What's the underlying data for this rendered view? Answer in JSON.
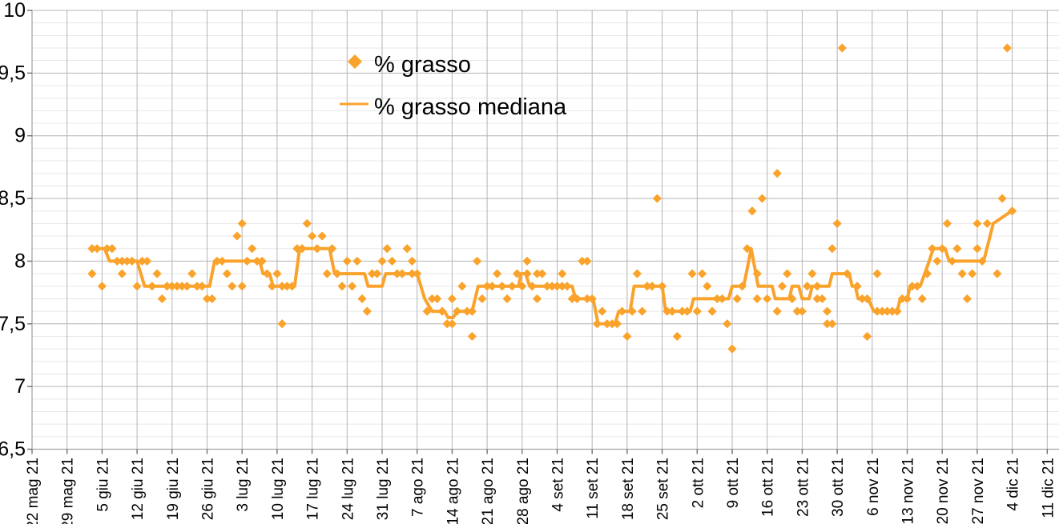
{
  "chart_data": {
    "type": "scatter",
    "title": "",
    "xlabel": "",
    "ylabel": "",
    "legend_position": "top-center-inside",
    "grid": true,
    "colors": {
      "series_orange": "#FAA32C",
      "major_grid": "#b4b4b4",
      "minor_grid": "#e7e7e7",
      "axis": "#a6a6a6",
      "tick": "#707070",
      "label_text": "#000000",
      "background": "#ffffff"
    },
    "y_axis": {
      "min": 6.5,
      "max": 10,
      "major_step": 0.5,
      "minor_step": 0.1,
      "tick_labels": [
        "10",
        "9,5",
        "9",
        "8,5",
        "8",
        "7,5",
        "7",
        "6,5"
      ]
    },
    "x_axis": {
      "unit": "days since first tick (weekly ticks)",
      "tick_interval_days": 7,
      "tick_labels": [
        "22 mag 21",
        "29 mag 21",
        "5 giu 21",
        "12 giu 21",
        "19 giu 21",
        "26 giu 21",
        "3 lug 21",
        "10 lug 21",
        "17 lug 21",
        "24 lug 21",
        "31 lug 21",
        "7 ago 21",
        "14 ago 21",
        "21 ago 21",
        "28 ago 21",
        "4 set 21",
        "11 set 21",
        "18 set 21",
        "25 set 21",
        "2 ott 21",
        "9 ott 21",
        "16 ott 21",
        "23 ott 21",
        "30 ott 21",
        "6 nov 21",
        "13 nov 21",
        "20 nov 21",
        "27 nov 21",
        "4 dic 21",
        "11 dic 21"
      ]
    },
    "series": [
      {
        "name": "% grasso",
        "style": "scatter",
        "marker": "diamond",
        "color": "#FAA32C",
        "points": [
          [
            12,
            7.9
          ],
          [
            12,
            8.1
          ],
          [
            13,
            8.1
          ],
          [
            14,
            7.8
          ],
          [
            15,
            8.1
          ],
          [
            16,
            8.1
          ],
          [
            17,
            8.0
          ],
          [
            18,
            8.0
          ],
          [
            18,
            7.9
          ],
          [
            19,
            8.0
          ],
          [
            20,
            8.0
          ],
          [
            21,
            7.8
          ],
          [
            22,
            8.0
          ],
          [
            23,
            8.0
          ],
          [
            24,
            7.8
          ],
          [
            25,
            7.9
          ],
          [
            26,
            7.7
          ],
          [
            27,
            7.8
          ],
          [
            28,
            7.8
          ],
          [
            29,
            7.8
          ],
          [
            30,
            7.8
          ],
          [
            31,
            7.8
          ],
          [
            32,
            7.9
          ],
          [
            33,
            7.8
          ],
          [
            34,
            7.8
          ],
          [
            35,
            7.7
          ],
          [
            36,
            7.7
          ],
          [
            37,
            8.0
          ],
          [
            38,
            8.0
          ],
          [
            39,
            7.9
          ],
          [
            40,
            7.8
          ],
          [
            41,
            8.2
          ],
          [
            42,
            8.3
          ],
          [
            42,
            7.8
          ],
          [
            43,
            8.0
          ],
          [
            44,
            8.1
          ],
          [
            45,
            8.0
          ],
          [
            46,
            8.0
          ],
          [
            47,
            7.9
          ],
          [
            48,
            7.8
          ],
          [
            49,
            7.9
          ],
          [
            50,
            7.5
          ],
          [
            50,
            7.8
          ],
          [
            51,
            7.8
          ],
          [
            52,
            7.8
          ],
          [
            53,
            8.1
          ],
          [
            54,
            8.1
          ],
          [
            55,
            8.3
          ],
          [
            56,
            8.2
          ],
          [
            57,
            8.1
          ],
          [
            58,
            8.2
          ],
          [
            59,
            7.9
          ],
          [
            60,
            8.1
          ],
          [
            61,
            7.9
          ],
          [
            62,
            7.8
          ],
          [
            63,
            8.0
          ],
          [
            64,
            7.8
          ],
          [
            65,
            8.0
          ],
          [
            66,
            7.7
          ],
          [
            67,
            7.6
          ],
          [
            68,
            7.9
          ],
          [
            69,
            7.9
          ],
          [
            70,
            8.0
          ],
          [
            71,
            8.1
          ],
          [
            72,
            8.0
          ],
          [
            73,
            7.9
          ],
          [
            74,
            7.9
          ],
          [
            75,
            8.1
          ],
          [
            76,
            8.0
          ],
          [
            76,
            7.9
          ],
          [
            77,
            7.9
          ],
          [
            79,
            7.6
          ],
          [
            80,
            7.7
          ],
          [
            81,
            7.7
          ],
          [
            82,
            7.6
          ],
          [
            83,
            7.5
          ],
          [
            84,
            7.7
          ],
          [
            84,
            7.5
          ],
          [
            85,
            7.6
          ],
          [
            86,
            7.8
          ],
          [
            87,
            7.6
          ],
          [
            88,
            7.6
          ],
          [
            88,
            7.4
          ],
          [
            89,
            8.0
          ],
          [
            90,
            7.7
          ],
          [
            91,
            7.8
          ],
          [
            92,
            7.8
          ],
          [
            93,
            7.9
          ],
          [
            94,
            7.8
          ],
          [
            95,
            7.7
          ],
          [
            96,
            7.8
          ],
          [
            97,
            7.9
          ],
          [
            98,
            7.8
          ],
          [
            99,
            8.0
          ],
          [
            99,
            7.9
          ],
          [
            100,
            7.8
          ],
          [
            101,
            7.9
          ],
          [
            101,
            7.7
          ],
          [
            102,
            7.9
          ],
          [
            103,
            7.8
          ],
          [
            104,
            7.8
          ],
          [
            105,
            7.8
          ],
          [
            106,
            7.9
          ],
          [
            106,
            7.8
          ],
          [
            107,
            7.8
          ],
          [
            108,
            7.7
          ],
          [
            109,
            7.7
          ],
          [
            110,
            8.0
          ],
          [
            111,
            8.0
          ],
          [
            111,
            7.7
          ],
          [
            112,
            7.7
          ],
          [
            113,
            7.5
          ],
          [
            114,
            7.6
          ],
          [
            115,
            7.5
          ],
          [
            116,
            7.5
          ],
          [
            117,
            7.5
          ],
          [
            118,
            7.6
          ],
          [
            119,
            7.4
          ],
          [
            120,
            7.6
          ],
          [
            121,
            7.9
          ],
          [
            122,
            7.6
          ],
          [
            123,
            7.8
          ],
          [
            124,
            7.8
          ],
          [
            125,
            8.5
          ],
          [
            126,
            7.8
          ],
          [
            127,
            7.6
          ],
          [
            128,
            7.6
          ],
          [
            129,
            7.4
          ],
          [
            130,
            7.6
          ],
          [
            131,
            7.6
          ],
          [
            132,
            7.9
          ],
          [
            133,
            7.6
          ],
          [
            134,
            7.9
          ],
          [
            135,
            7.8
          ],
          [
            136,
            7.6
          ],
          [
            137,
            7.7
          ],
          [
            138,
            7.7
          ],
          [
            139,
            7.5
          ],
          [
            140,
            7.3
          ],
          [
            141,
            7.7
          ],
          [
            142,
            7.8
          ],
          [
            143,
            8.1
          ],
          [
            144,
            8.4
          ],
          [
            145,
            7.9
          ],
          [
            145,
            7.7
          ],
          [
            146,
            8.5
          ],
          [
            147,
            7.7
          ],
          [
            149,
            8.7
          ],
          [
            149,
            7.6
          ],
          [
            150,
            7.8
          ],
          [
            151,
            7.9
          ],
          [
            152,
            7.7
          ],
          [
            153,
            7.6
          ],
          [
            154,
            7.6
          ],
          [
            155,
            7.8
          ],
          [
            156,
            7.9
          ],
          [
            157,
            7.8
          ],
          [
            157,
            7.7
          ],
          [
            158,
            7.7
          ],
          [
            159,
            7.5
          ],
          [
            159,
            7.6
          ],
          [
            160,
            7.5
          ],
          [
            160,
            8.1
          ],
          [
            161,
            8.3
          ],
          [
            162,
            9.7
          ],
          [
            163,
            7.9
          ],
          [
            165,
            7.8
          ],
          [
            166,
            7.7
          ],
          [
            167,
            7.7
          ],
          [
            167,
            7.4
          ],
          [
            169,
            7.9
          ],
          [
            169,
            7.6
          ],
          [
            170,
            7.6
          ],
          [
            171,
            7.6
          ],
          [
            172,
            7.6
          ],
          [
            173,
            7.6
          ],
          [
            174,
            7.7
          ],
          [
            175,
            7.7
          ],
          [
            176,
            7.8
          ],
          [
            177,
            7.8
          ],
          [
            178,
            7.7
          ],
          [
            179,
            7.9
          ],
          [
            180,
            8.1
          ],
          [
            181,
            8.0
          ],
          [
            182,
            8.1
          ],
          [
            183,
            8.3
          ],
          [
            184,
            8.0
          ],
          [
            185,
            8.1
          ],
          [
            186,
            7.9
          ],
          [
            187,
            7.7
          ],
          [
            188,
            7.9
          ],
          [
            189,
            8.3
          ],
          [
            189,
            8.1
          ],
          [
            190,
            8.0
          ],
          [
            191,
            8.3
          ],
          [
            193,
            7.9
          ],
          [
            194,
            8.5
          ],
          [
            195,
            9.7
          ],
          [
            196,
            8.4
          ]
        ]
      },
      {
        "name": "% grasso mediana",
        "style": "line",
        "color": "#FAA32C",
        "points": [
          [
            13,
            8.1
          ],
          [
            14.5,
            8.1
          ],
          [
            15.5,
            8.0
          ],
          [
            21,
            8.0
          ],
          [
            22.5,
            7.8
          ],
          [
            35.5,
            7.8
          ],
          [
            36.5,
            8.0
          ],
          [
            45.5,
            8.0
          ],
          [
            46.2,
            7.9
          ],
          [
            47.5,
            7.9
          ],
          [
            48.2,
            7.8
          ],
          [
            52.5,
            7.8
          ],
          [
            53.5,
            8.1
          ],
          [
            59.5,
            8.1
          ],
          [
            60.5,
            7.9
          ],
          [
            66.5,
            7.9
          ],
          [
            67.2,
            7.8
          ],
          [
            70,
            7.8
          ],
          [
            70.7,
            7.9
          ],
          [
            77,
            7.9
          ],
          [
            78.5,
            7.7
          ],
          [
            80,
            7.6
          ],
          [
            82.5,
            7.6
          ],
          [
            83.2,
            7.55
          ],
          [
            84.2,
            7.55
          ],
          [
            85,
            7.6
          ],
          [
            88,
            7.6
          ],
          [
            89.2,
            7.8
          ],
          [
            97.3,
            7.8
          ],
          [
            97.8,
            7.9
          ],
          [
            98.7,
            7.9
          ],
          [
            99.5,
            7.8
          ],
          [
            108,
            7.8
          ],
          [
            108.7,
            7.7
          ],
          [
            112.2,
            7.7
          ],
          [
            113.2,
            7.5
          ],
          [
            116.6,
            7.5
          ],
          [
            117.3,
            7.6
          ],
          [
            119.6,
            7.6
          ],
          [
            120.4,
            7.8
          ],
          [
            126,
            7.8
          ],
          [
            126.7,
            7.6
          ],
          [
            131.6,
            7.6
          ],
          [
            132.3,
            7.7
          ],
          [
            139.3,
            7.7
          ],
          [
            140,
            7.8
          ],
          [
            142.3,
            7.8
          ],
          [
            143.8,
            8.1
          ],
          [
            145.2,
            7.8
          ],
          [
            148,
            7.8
          ],
          [
            148.6,
            7.7
          ],
          [
            151.4,
            7.7
          ],
          [
            152,
            7.8
          ],
          [
            153.3,
            7.8
          ],
          [
            154,
            7.7
          ],
          [
            155.4,
            7.7
          ],
          [
            156,
            7.8
          ],
          [
            159.4,
            7.8
          ],
          [
            160,
            7.9
          ],
          [
            163.4,
            7.9
          ],
          [
            164,
            7.8
          ],
          [
            164.6,
            7.8
          ],
          [
            165.2,
            7.7
          ],
          [
            167.2,
            7.7
          ],
          [
            168.3,
            7.6
          ],
          [
            173,
            7.6
          ],
          [
            173.6,
            7.7
          ],
          [
            175,
            7.7
          ],
          [
            175.6,
            7.8
          ],
          [
            177.6,
            7.8
          ],
          [
            179.4,
            8.0
          ],
          [
            180.2,
            8.1
          ],
          [
            182.6,
            8.1
          ],
          [
            183.4,
            8.0
          ],
          [
            190.3,
            8.0
          ],
          [
            192.2,
            8.3
          ],
          [
            195.9,
            8.4
          ]
        ]
      }
    ]
  }
}
